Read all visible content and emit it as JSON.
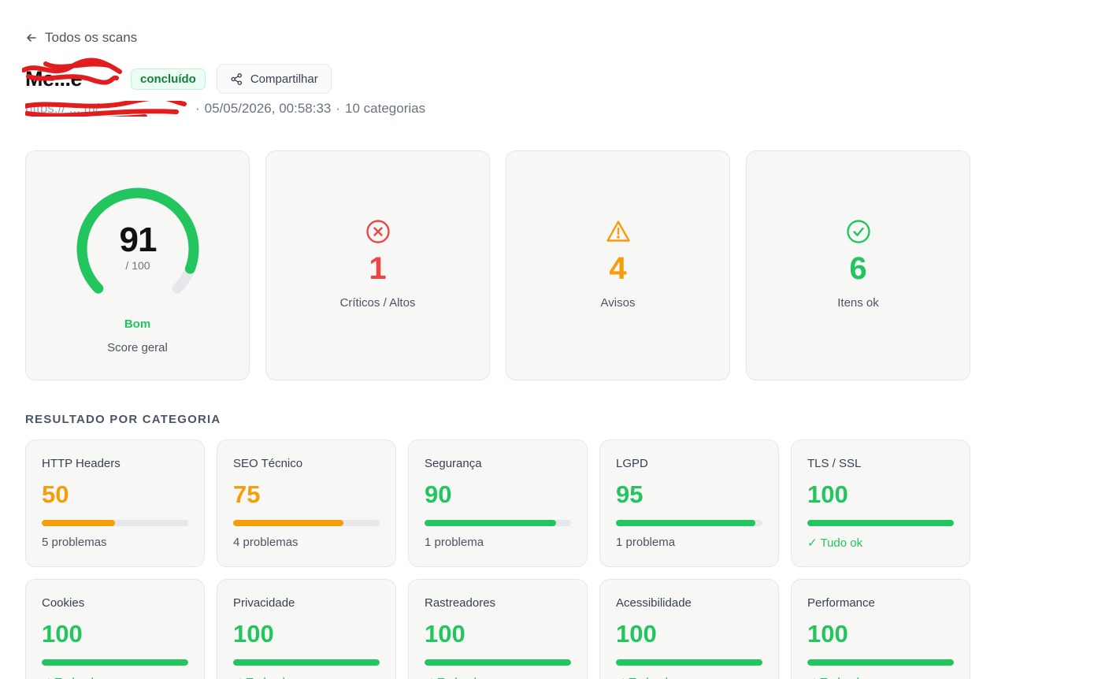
{
  "nav": {
    "back_label": "Todos os scans"
  },
  "header": {
    "site_name": "Me...e",
    "status": "concluído",
    "share_label": "Compartilhar",
    "url": "https:// ... m/",
    "date": "05/05/2026, 00:58:33",
    "categories_count": "10 categorias",
    "separator": "·"
  },
  "summary": {
    "score": {
      "value": "91",
      "max": "/ 100",
      "rating": "Bom",
      "label": "Score geral",
      "fraction": 0.91
    },
    "stats": [
      {
        "value": "1",
        "label": "Críticos / Altos",
        "icon": "x-circle-icon",
        "color": "#ef4444"
      },
      {
        "value": "4",
        "label": "Avisos",
        "icon": "warning-triangle-icon",
        "color": "#f59e0b"
      },
      {
        "value": "6",
        "label": "Itens ok",
        "icon": "check-circle-icon",
        "color": "#22c55e"
      }
    ]
  },
  "section_title": "RESULTADO POR CATEGORIA",
  "categories": [
    {
      "name": "HTTP Headers",
      "score": "50",
      "percent": 50,
      "status": "5 problemas",
      "color": "#f59e0b",
      "ok": false
    },
    {
      "name": "SEO Técnico",
      "score": "75",
      "percent": 75,
      "status": "4 problemas",
      "color": "#f59e0b",
      "ok": false
    },
    {
      "name": "Segurança",
      "score": "90",
      "percent": 90,
      "status": "1 problema",
      "color": "#22c55e",
      "ok": false
    },
    {
      "name": "LGPD",
      "score": "95",
      "percent": 95,
      "status": "1 problema",
      "color": "#22c55e",
      "ok": false
    },
    {
      "name": "TLS / SSL",
      "score": "100",
      "percent": 100,
      "status": "✓ Tudo ok",
      "color": "#22c55e",
      "ok": true
    },
    {
      "name": "Cookies",
      "score": "100",
      "percent": 100,
      "status": "✓ Tudo ok",
      "color": "#22c55e",
      "ok": true
    },
    {
      "name": "Privacidade",
      "score": "100",
      "percent": 100,
      "status": "✓ Tudo ok",
      "color": "#22c55e",
      "ok": true
    },
    {
      "name": "Rastreadores",
      "score": "100",
      "percent": 100,
      "status": "✓ Tudo ok",
      "color": "#22c55e",
      "ok": true
    },
    {
      "name": "Acessibilidade",
      "score": "100",
      "percent": 100,
      "status": "✓ Tudo ok",
      "color": "#22c55e",
      "ok": true
    },
    {
      "name": "Performance",
      "score": "100",
      "percent": 100,
      "status": "✓ Tudo ok",
      "color": "#22c55e",
      "ok": true
    }
  ],
  "colors": {
    "success": "#22c55e",
    "warning": "#f59e0b",
    "danger": "#ef4444",
    "track": "#e5e7eb",
    "redaction": "#e11d1d"
  }
}
